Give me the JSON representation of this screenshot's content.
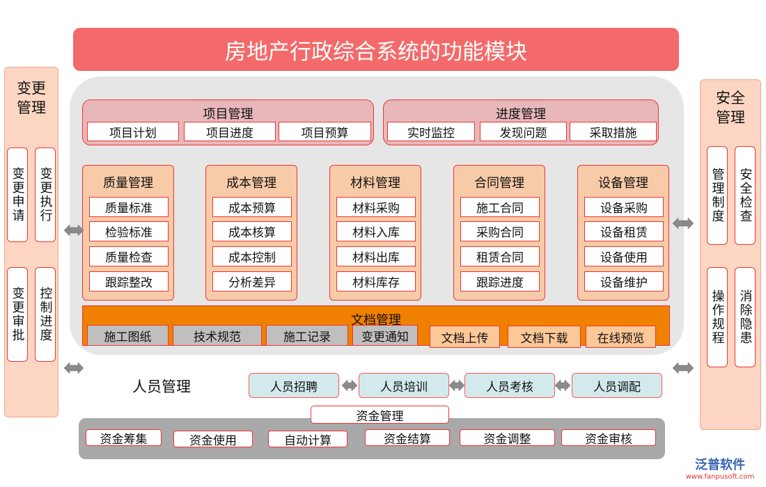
{
  "title": "房地产行政综合系统的功能模块",
  "left_panel": {
    "title": "变更管理",
    "items": [
      "变更申请",
      "变更执行",
      "变更审批",
      "控制进度"
    ]
  },
  "right_panel": {
    "title": "安全管理",
    "items": [
      "管理制度",
      "安全检查",
      "操作规程",
      "消除隐患"
    ]
  },
  "project": {
    "title": "项目管理",
    "items": [
      "项目计划",
      "项目进度",
      "项目预算"
    ]
  },
  "progress": {
    "title": "进度管理",
    "items": [
      "实时监控",
      "发现问题",
      "采取措施"
    ]
  },
  "modules": [
    {
      "title": "质量管理",
      "items": [
        "质量标准",
        "检验标准",
        "质量检查",
        "跟踪整改"
      ]
    },
    {
      "title": "成本管理",
      "items": [
        "成本预算",
        "成本核算",
        "成本控制",
        "分析差异"
      ]
    },
    {
      "title": "材料管理",
      "items": [
        "材料采购",
        "材料入库",
        "材料出库",
        "材料库存"
      ]
    },
    {
      "title": "合同管理",
      "items": [
        "施工合同",
        "采购合同",
        "租赁合同",
        "跟踪进度"
      ]
    },
    {
      "title": "设备管理",
      "items": [
        "设备采购",
        "设备租赁",
        "设备使用",
        "设备维护"
      ]
    }
  ],
  "documents": {
    "title": "文档管理",
    "items": [
      "施工图纸",
      "技术规范",
      "施工记录",
      "变更通知",
      "文档上传",
      "文档下载",
      "在线预览"
    ]
  },
  "personnel": {
    "title": "人员管理",
    "items": [
      "人员招聘",
      "人员培训",
      "人员考核",
      "人员调配"
    ]
  },
  "funds": {
    "title": "资金管理",
    "items": [
      "资金筹集",
      "资金使用",
      "自动计算",
      "资金结算",
      "资金调整",
      "资金审核"
    ]
  },
  "watermark": {
    "brand": "泛普软件",
    "url": "www.fanpusoft.com"
  },
  "colors": {
    "title": "#f46a6a",
    "border": "#ee3333",
    "document": "#f08000"
  }
}
